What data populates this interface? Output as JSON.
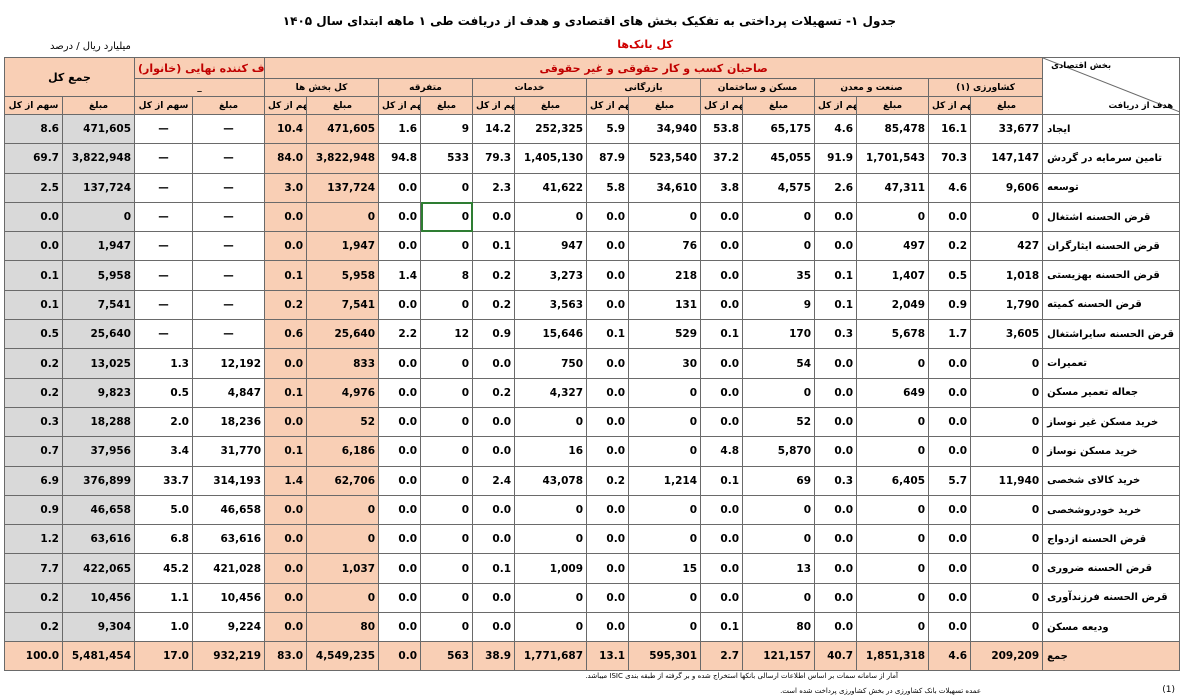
{
  "title": "جدول ۱-  تسهیلات پرداختی به تفکیک بخش های اقتصادی و هدف از دریافت طی ۱ ماهه ابتدای سال ۱۴۰۵",
  "subtitle": "کل بانک‌ها",
  "unit": "میلیارد ریال / درصد",
  "header": {
    "total_group": "جمع کل",
    "consumer_group": "مصرف کننده نهایی (خانوار)",
    "business_group": "صاحبان کسب و کار حقوقی و غیر حقوقی",
    "consumer_sub": "_",
    "sectors": {
      "all": "کل بخش ها",
      "misc": "متفرقه",
      "services": "خدمات",
      "trade": "بازرگانی",
      "housing": "مسکن و ساختمان",
      "industry": "صنعت و معدن",
      "agriculture": "کشاورزی (۱)"
    },
    "corner_top": "بخش اقتصادی",
    "corner_bottom": "هدف از دریافت",
    "share": "سهم از کل",
    "amount": "مبلغ"
  },
  "rows": [
    {
      "label": "ایجاد",
      "total_share": "8.6",
      "total_amt": "471,605",
      "cons_share": "—",
      "cons_amt": "—",
      "all_share": "10.4",
      "all_amt": "471,605",
      "misc_share": "1.6",
      "misc_amt": "9",
      "serv_share": "14.2",
      "serv_amt": "252,325",
      "trade_share": "5.9",
      "trade_amt": "34,940",
      "hous_share": "53.8",
      "hous_amt": "65,175",
      "ind_share": "4.6",
      "ind_amt": "85,478",
      "agr_share": "16.1",
      "agr_amt": "33,677"
    },
    {
      "label": "تامین سرمایه در گردش",
      "total_share": "69.7",
      "total_amt": "3,822,948",
      "cons_share": "—",
      "cons_amt": "—",
      "all_share": "84.0",
      "all_amt": "3,822,948",
      "misc_share": "94.8",
      "misc_amt": "533",
      "serv_share": "79.3",
      "serv_amt": "1,405,130",
      "trade_share": "87.9",
      "trade_amt": "523,540",
      "hous_share": "37.2",
      "hous_amt": "45,055",
      "ind_share": "91.9",
      "ind_amt": "1,701,543",
      "agr_share": "70.3",
      "agr_amt": "147,147"
    },
    {
      "label": "توسعه",
      "total_share": "2.5",
      "total_amt": "137,724",
      "cons_share": "—",
      "cons_amt": "—",
      "all_share": "3.0",
      "all_amt": "137,724",
      "misc_share": "0.0",
      "misc_amt": "0",
      "serv_share": "2.3",
      "serv_amt": "41,622",
      "trade_share": "5.8",
      "trade_amt": "34,610",
      "hous_share": "3.8",
      "hous_amt": "4,575",
      "ind_share": "2.6",
      "ind_amt": "47,311",
      "agr_share": "4.6",
      "agr_amt": "9,606"
    },
    {
      "label": "قرض الحسنه اشتغال",
      "total_share": "0.0",
      "total_amt": "0",
      "cons_share": "—",
      "cons_amt": "—",
      "all_share": "0.0",
      "all_amt": "0",
      "misc_share": "0.0",
      "misc_amt": "0",
      "serv_share": "0.0",
      "serv_amt": "0",
      "trade_share": "0.0",
      "trade_amt": "0",
      "hous_share": "0.0",
      "hous_amt": "0",
      "ind_share": "0.0",
      "ind_amt": "0",
      "agr_share": "0.0",
      "agr_amt": "0"
    },
    {
      "label": "قرض الحسنه ایثارگران",
      "total_share": "0.0",
      "total_amt": "1,947",
      "cons_share": "—",
      "cons_amt": "—",
      "all_share": "0.0",
      "all_amt": "1,947",
      "misc_share": "0.0",
      "misc_amt": "0",
      "serv_share": "0.1",
      "serv_amt": "947",
      "trade_share": "0.0",
      "trade_amt": "76",
      "hous_share": "0.0",
      "hous_amt": "0",
      "ind_share": "0.0",
      "ind_amt": "497",
      "agr_share": "0.2",
      "agr_amt": "427"
    },
    {
      "label": "قرض الحسنه بهزیستی",
      "total_share": "0.1",
      "total_amt": "5,958",
      "cons_share": "—",
      "cons_amt": "—",
      "all_share": "0.1",
      "all_amt": "5,958",
      "misc_share": "1.4",
      "misc_amt": "8",
      "serv_share": "0.2",
      "serv_amt": "3,273",
      "trade_share": "0.0",
      "trade_amt": "218",
      "hous_share": "0.0",
      "hous_amt": "35",
      "ind_share": "0.1",
      "ind_amt": "1,407",
      "agr_share": "0.5",
      "agr_amt": "1,018"
    },
    {
      "label": "قرض الحسنه کمیته",
      "total_share": "0.1",
      "total_amt": "7,541",
      "cons_share": "—",
      "cons_amt": "—",
      "all_share": "0.2",
      "all_amt": "7,541",
      "misc_share": "0.0",
      "misc_amt": "0",
      "serv_share": "0.2",
      "serv_amt": "3,563",
      "trade_share": "0.0",
      "trade_amt": "131",
      "hous_share": "0.0",
      "hous_amt": "9",
      "ind_share": "0.1",
      "ind_amt": "2,049",
      "agr_share": "0.9",
      "agr_amt": "1,790"
    },
    {
      "label": "قرض الحسنه سایراشتغال",
      "total_share": "0.5",
      "total_amt": "25,640",
      "cons_share": "—",
      "cons_amt": "—",
      "all_share": "0.6",
      "all_amt": "25,640",
      "misc_share": "2.2",
      "misc_amt": "12",
      "serv_share": "0.9",
      "serv_amt": "15,646",
      "trade_share": "0.1",
      "trade_amt": "529",
      "hous_share": "0.1",
      "hous_amt": "170",
      "ind_share": "0.3",
      "ind_amt": "5,678",
      "agr_share": "1.7",
      "agr_amt": "3,605"
    },
    {
      "label": "تعمیرات",
      "total_share": "0.2",
      "total_amt": "13,025",
      "cons_share": "1.3",
      "cons_amt": "12,192",
      "all_share": "0.0",
      "all_amt": "833",
      "misc_share": "0.0",
      "misc_amt": "0",
      "serv_share": "0.0",
      "serv_amt": "750",
      "trade_share": "0.0",
      "trade_amt": "30",
      "hous_share": "0.0",
      "hous_amt": "54",
      "ind_share": "0.0",
      "ind_amt": "0",
      "agr_share": "0.0",
      "agr_amt": "0"
    },
    {
      "label": "جعاله تعمیر مسکن",
      "total_share": "0.2",
      "total_amt": "9,823",
      "cons_share": "0.5",
      "cons_amt": "4,847",
      "all_share": "0.1",
      "all_amt": "4,976",
      "misc_share": "0.0",
      "misc_amt": "0",
      "serv_share": "0.2",
      "serv_amt": "4,327",
      "trade_share": "0.0",
      "trade_amt": "0",
      "hous_share": "0.0",
      "hous_amt": "0",
      "ind_share": "0.0",
      "ind_amt": "649",
      "agr_share": "0.0",
      "agr_amt": "0"
    },
    {
      "label": "خرید مسکن غیر نوساز",
      "total_share": "0.3",
      "total_amt": "18,288",
      "cons_share": "2.0",
      "cons_amt": "18,236",
      "all_share": "0.0",
      "all_amt": "52",
      "misc_share": "0.0",
      "misc_amt": "0",
      "serv_share": "0.0",
      "serv_amt": "0",
      "trade_share": "0.0",
      "trade_amt": "0",
      "hous_share": "0.0",
      "hous_amt": "52",
      "ind_share": "0.0",
      "ind_amt": "0",
      "agr_share": "0.0",
      "agr_amt": "0"
    },
    {
      "label": "خرید مسکن نوساز",
      "total_share": "0.7",
      "total_amt": "37,956",
      "cons_share": "3.4",
      "cons_amt": "31,770",
      "all_share": "0.1",
      "all_amt": "6,186",
      "misc_share": "0.0",
      "misc_amt": "0",
      "serv_share": "0.0",
      "serv_amt": "16",
      "trade_share": "0.0",
      "trade_amt": "0",
      "hous_share": "4.8",
      "hous_amt": "5,870",
      "ind_share": "0.0",
      "ind_amt": "0",
      "agr_share": "0.0",
      "agr_amt": "0"
    },
    {
      "label": "خرید کالای شخصی",
      "total_share": "6.9",
      "total_amt": "376,899",
      "cons_share": "33.7",
      "cons_amt": "314,193",
      "all_share": "1.4",
      "all_amt": "62,706",
      "misc_share": "0.0",
      "misc_amt": "0",
      "serv_share": "2.4",
      "serv_amt": "43,078",
      "trade_share": "0.2",
      "trade_amt": "1,214",
      "hous_share": "0.1",
      "hous_amt": "69",
      "ind_share": "0.3",
      "ind_amt": "6,405",
      "agr_share": "5.7",
      "agr_amt": "11,940"
    },
    {
      "label": "خرید خودروشخصی",
      "total_share": "0.9",
      "total_amt": "46,658",
      "cons_share": "5.0",
      "cons_amt": "46,658",
      "all_share": "0.0",
      "all_amt": "0",
      "misc_share": "0.0",
      "misc_amt": "0",
      "serv_share": "0.0",
      "serv_amt": "0",
      "trade_share": "0.0",
      "trade_amt": "0",
      "hous_share": "0.0",
      "hous_amt": "0",
      "ind_share": "0.0",
      "ind_amt": "0",
      "agr_share": "0.0",
      "agr_amt": "0"
    },
    {
      "label": "قرض الحسنه ازدواج",
      "total_share": "1.2",
      "total_amt": "63,616",
      "cons_share": "6.8",
      "cons_amt": "63,616",
      "all_share": "0.0",
      "all_amt": "0",
      "misc_share": "0.0",
      "misc_amt": "0",
      "serv_share": "0.0",
      "serv_amt": "0",
      "trade_share": "0.0",
      "trade_amt": "0",
      "hous_share": "0.0",
      "hous_amt": "0",
      "ind_share": "0.0",
      "ind_amt": "0",
      "agr_share": "0.0",
      "agr_amt": "0"
    },
    {
      "label": "قرض الحسنه ضروری",
      "total_share": "7.7",
      "total_amt": "422,065",
      "cons_share": "45.2",
      "cons_amt": "421,028",
      "all_share": "0.0",
      "all_amt": "1,037",
      "misc_share": "0.0",
      "misc_amt": "0",
      "serv_share": "0.1",
      "serv_amt": "1,009",
      "trade_share": "0.0",
      "trade_amt": "15",
      "hous_share": "0.0",
      "hous_amt": "13",
      "ind_share": "0.0",
      "ind_amt": "0",
      "agr_share": "0.0",
      "agr_amt": "0"
    },
    {
      "label": "قرض الحسنه فرزندآوری",
      "total_share": "0.2",
      "total_amt": "10,456",
      "cons_share": "1.1",
      "cons_amt": "10,456",
      "all_share": "0.0",
      "all_amt": "0",
      "misc_share": "0.0",
      "misc_amt": "0",
      "serv_share": "0.0",
      "serv_amt": "0",
      "trade_share": "0.0",
      "trade_amt": "0",
      "hous_share": "0.0",
      "hous_amt": "0",
      "ind_share": "0.0",
      "ind_amt": "0",
      "agr_share": "0.0",
      "agr_amt": "0"
    },
    {
      "label": "ودیعه مسکن",
      "total_share": "0.2",
      "total_amt": "9,304",
      "cons_share": "1.0",
      "cons_amt": "9,224",
      "all_share": "0.0",
      "all_amt": "80",
      "misc_share": "0.0",
      "misc_amt": "0",
      "serv_share": "0.0",
      "serv_amt": "0",
      "trade_share": "0.0",
      "trade_amt": "0",
      "hous_share": "0.1",
      "hous_amt": "80",
      "ind_share": "0.0",
      "ind_amt": "0",
      "agr_share": "0.0",
      "agr_amt": "0"
    }
  ],
  "total_row": {
    "label": "جمع",
    "total_share": "100.0",
    "total_amt": "5,481,454",
    "cons_share": "17.0",
    "cons_amt": "932,219",
    "all_share": "83.0",
    "all_amt": "4,549,235",
    "misc_share": "0.0",
    "misc_amt": "563",
    "serv_share": "38.9",
    "serv_amt": "1,771,687",
    "trade_share": "13.1",
    "trade_amt": "595,301",
    "hous_share": "2.7",
    "hous_amt": "121,157",
    "ind_share": "40.7",
    "ind_amt": "1,851,318",
    "agr_share": "4.6",
    "agr_amt": "209,209"
  },
  "footnotes": {
    "note1": "آمار از سامانه سمات بر اساس اطلاعات ارسالی بانکها استخراج شده و بر گرفته از طبقه بندی ISIC میباشد.",
    "note2": "عمده تسهیلات بانک کشاورزی در بخش کشاورزی پرداخت شده است.",
    "num": "(1)"
  }
}
